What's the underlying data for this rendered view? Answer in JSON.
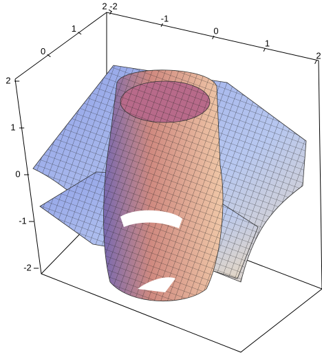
{
  "chart_data": {
    "type": "surface3d",
    "xlim": [
      -2,
      2
    ],
    "xticks": [
      -2,
      -1,
      0,
      1,
      2
    ],
    "ylim": [
      -1,
      2
    ],
    "yticks": [
      0,
      1,
      2
    ],
    "zlim": [
      -2,
      2
    ],
    "zticks": [
      -2,
      -1,
      0,
      1,
      2
    ]
  }
}
